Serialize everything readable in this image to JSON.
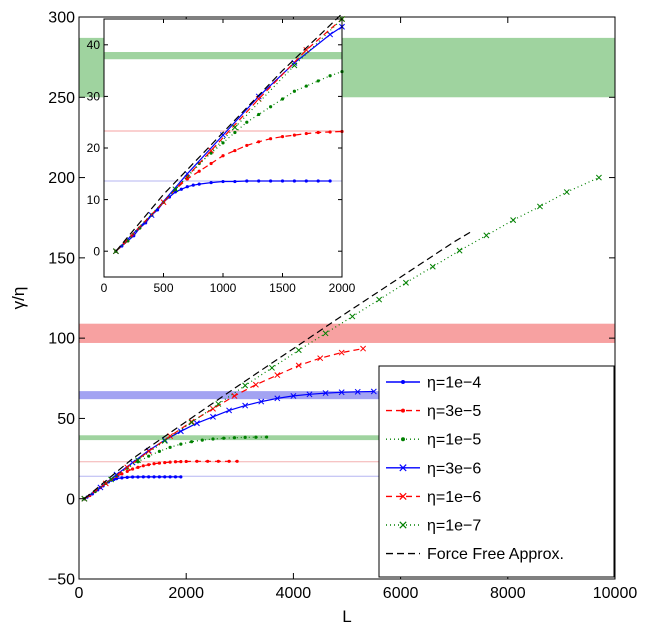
{
  "chart_data": [
    {
      "id": "main",
      "type": "line",
      "xlabel": "L",
      "ylabel": "γ/η",
      "xlim": [
        0,
        10000
      ],
      "ylim": [
        -50,
        300
      ],
      "xticks": [
        0,
        2000,
        4000,
        6000,
        8000,
        10000
      ],
      "yticks": [
        -50,
        0,
        50,
        100,
        150,
        200,
        250,
        300
      ],
      "bands": [
        {
          "color": "#9fd39f",
          "y0": 250,
          "y1": 287
        },
        {
          "color": "#f7a1a1",
          "y0": 97,
          "y1": 109
        },
        {
          "color": "#a3a3f2",
          "y0": 62,
          "y1": 67
        },
        {
          "color": "#9fd39f",
          "y0": 36.5,
          "y1": 39.5
        }
      ],
      "thin_lines": [
        {
          "color": "#f4b0b0",
          "y": 23
        },
        {
          "color": "#b6b6f2",
          "y": 14
        }
      ],
      "series": [
        {
          "name": "η=1e−4",
          "color": "#0000ff",
          "dash": "",
          "marker": "dot",
          "x": [
            100,
            150,
            200,
            250,
            300,
            350,
            400,
            450,
            500,
            550,
            600,
            650,
            700,
            800,
            900,
            1000,
            1100,
            1200,
            1300,
            1400,
            1500,
            1600,
            1700,
            1800,
            1900
          ],
          "y": [
            0,
            1,
            2,
            3,
            4.5,
            5.5,
            7,
            8,
            9.5,
            10.5,
            11.5,
            12,
            12.5,
            13,
            13.3,
            13.5,
            13.5,
            13.6,
            13.6,
            13.6,
            13.6,
            13.6,
            13.6,
            13.6,
            13.6
          ]
        },
        {
          "name": "η=3e−5",
          "color": "#ff0000",
          "dash": "6,4",
          "marker": "dot",
          "x": [
            100,
            200,
            300,
            400,
            500,
            600,
            700,
            800,
            900,
            1000,
            1100,
            1200,
            1300,
            1400,
            1500,
            1600,
            1700,
            1800,
            1900,
            2000,
            2200,
            2400,
            2600,
            2800,
            2950
          ],
          "y": [
            0,
            2,
            4.5,
            7,
            9.5,
            12,
            14,
            15.5,
            17,
            18.5,
            19.5,
            20.5,
            21.2,
            21.8,
            22.2,
            22.5,
            22.8,
            23,
            23.1,
            23.2,
            23.3,
            23.3,
            23.3,
            23.3,
            23.3
          ]
        },
        {
          "name": "η=1e−5",
          "color": "#008000",
          "dash": "1,3",
          "marker": "dot",
          "x": [
            100,
            300,
            500,
            700,
            900,
            1100,
            1300,
            1500,
            1700,
            1900,
            2100,
            2300,
            2500,
            2700,
            2900,
            3100,
            3300,
            3500
          ],
          "y": [
            0,
            4.5,
            9.5,
            14.5,
            19,
            23,
            26.5,
            29.5,
            32,
            34,
            35.5,
            36.5,
            37.2,
            37.7,
            38,
            38.2,
            38.3,
            38.4
          ]
        },
        {
          "name": "η=3e−6",
          "color": "#0000ff",
          "dash": "",
          "marker": "x",
          "x": [
            100,
            400,
            700,
            1000,
            1300,
            1600,
            1900,
            2200,
            2500,
            2800,
            3100,
            3400,
            3700,
            4000,
            4300,
            4600,
            4900,
            5200,
            5500
          ],
          "y": [
            0,
            7,
            15,
            22.5,
            30,
            36.5,
            42,
            47,
            51,
            55,
            58,
            60.5,
            62.5,
            64,
            65,
            65.8,
            66.3,
            66.6,
            66.8
          ]
        },
        {
          "name": "η=1e−6",
          "color": "#ff0000",
          "dash": "6,4",
          "marker": "x",
          "x": [
            100,
            500,
            900,
            1300,
            1700,
            2100,
            2500,
            2900,
            3300,
            3700,
            4100,
            4500,
            4900,
            5300
          ],
          "y": [
            0,
            9.5,
            19.5,
            29.5,
            39,
            48,
            56,
            64,
            71,
            77,
            83,
            87.5,
            91,
            93.5
          ]
        },
        {
          "name": "η=1e−7",
          "color": "#008000",
          "dash": "1,3",
          "marker": "x",
          "x": [
            100,
            600,
            1100,
            1600,
            2100,
            2600,
            3100,
            3600,
            4100,
            4600,
            5100,
            5600,
            6100,
            6600,
            7100,
            7600,
            8100,
            8600,
            9100,
            9700
          ],
          "y": [
            0,
            12,
            24,
            36,
            47.5,
            59,
            70.5,
            81.5,
            92.5,
            103,
            113.5,
            124,
            134.5,
            144.5,
            154.5,
            164,
            173.5,
            182,
            191,
            200
          ]
        },
        {
          "name": "Force Free Approx.",
          "color": "#000000",
          "dash": "7,4",
          "marker": "none",
          "x": [
            100,
            1000,
            2000,
            3000,
            4000,
            5000,
            6000,
            7000,
            7300
          ],
          "y": [
            0,
            25,
            48,
            71,
            93.5,
            116,
            138,
            160,
            166
          ]
        }
      ]
    },
    {
      "id": "inset",
      "type": "line",
      "xlim": [
        0,
        2000
      ],
      "ylim": [
        -5,
        45
      ],
      "xticks": [
        0,
        500,
        1000,
        1500,
        2000
      ],
      "yticks": [
        0,
        10,
        20,
        30,
        40
      ],
      "bands": [
        {
          "color": "#9fd39f",
          "y0": 37.2,
          "y1": 38.6
        }
      ],
      "thin_lines": [
        {
          "color": "#f4a0a0",
          "y": 23.3
        },
        {
          "color": "#b6b6f2",
          "y": 13.6
        }
      ],
      "series": [
        {
          "name": "η=1e−4",
          "color": "#0000ff",
          "dash": "",
          "marker": "dot",
          "x": [
            100,
            150,
            200,
            250,
            300,
            350,
            400,
            450,
            500,
            550,
            600,
            650,
            700,
            750,
            800,
            900,
            1000,
            1100,
            1200,
            1300,
            1400,
            1500,
            1600,
            1700,
            1800,
            1900
          ],
          "y": [
            0,
            1,
            2,
            3,
            4.5,
            5.5,
            7,
            8,
            9.5,
            10.5,
            11.5,
            12,
            12.5,
            12.8,
            13,
            13.3,
            13.5,
            13.5,
            13.6,
            13.6,
            13.6,
            13.6,
            13.6,
            13.6,
            13.6,
            13.6
          ]
        },
        {
          "name": "η=3e−5",
          "color": "#ff0000",
          "dash": "6,4",
          "marker": "dot",
          "x": [
            100,
            200,
            300,
            400,
            500,
            600,
            700,
            800,
            900,
            1000,
            1100,
            1200,
            1300,
            1400,
            1500,
            1600,
            1700,
            1800,
            1900,
            2000
          ],
          "y": [
            0,
            2,
            4.5,
            7,
            9.5,
            12,
            14,
            15.5,
            17,
            18.5,
            19.5,
            20.5,
            21.2,
            21.8,
            22.2,
            22.5,
            22.8,
            23,
            23.1,
            23.2
          ]
        },
        {
          "name": "η=1e−5",
          "color": "#008000",
          "dash": "1,3",
          "marker": "dot",
          "x": [
            100,
            200,
            300,
            400,
            500,
            600,
            700,
            800,
            900,
            1000,
            1100,
            1200,
            1300,
            1400,
            1500,
            1600,
            1700,
            1800,
            1900,
            2000
          ],
          "y": [
            0,
            2,
            4.5,
            7,
            9.5,
            12,
            14.5,
            17,
            19,
            21,
            23,
            25,
            26.5,
            28,
            29.5,
            31,
            32,
            33,
            34,
            34.8
          ]
        },
        {
          "name": "η=3e−6",
          "color": "#0000ff",
          "dash": "",
          "marker": "x",
          "x": [
            100,
            400,
            700,
            1000,
            1300,
            1600,
            1900,
            2000
          ],
          "y": [
            0,
            7,
            15,
            22.5,
            30,
            36.5,
            42,
            43.5
          ]
        },
        {
          "name": "η=1e−6",
          "color": "#ff0000",
          "dash": "6,4",
          "marker": "x",
          "x": [
            100,
            500,
            900,
            1300,
            1700,
            2000
          ],
          "y": [
            0,
            9.5,
            19.5,
            29.5,
            39,
            45
          ]
        },
        {
          "name": "η=1e−7",
          "color": "#008000",
          "dash": "1,3",
          "marker": "x",
          "x": [
            100,
            600,
            1100,
            1600,
            2000
          ],
          "y": [
            0,
            12,
            24,
            36,
            45
          ]
        },
        {
          "name": "Force Free Approx.",
          "color": "#000000",
          "dash": "7,4",
          "marker": "none",
          "x": [
            100,
            500,
            1000,
            1500,
            2000
          ],
          "y": [
            0,
            11,
            23,
            35,
            46
          ]
        }
      ]
    }
  ]
}
